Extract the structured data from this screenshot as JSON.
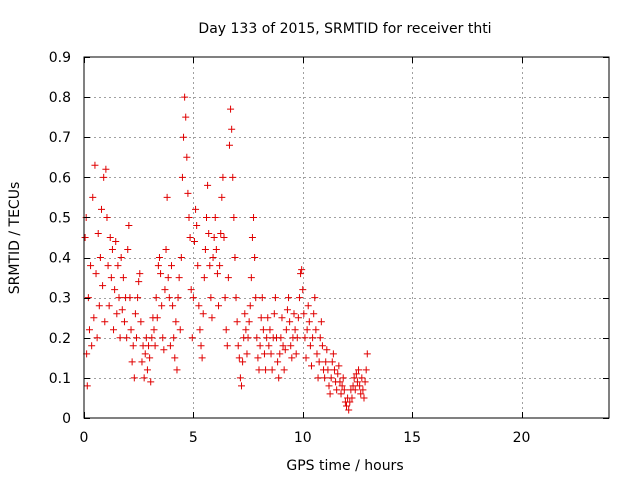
{
  "chart_data": {
    "type": "scatter",
    "title": "Day 133 of 2015, SRMTID for receiver thti",
    "xlabel": "GPS time / hours",
    "ylabel": "SRMTID / TECUs",
    "xlim": [
      0,
      24
    ],
    "ylim": [
      0,
      0.9
    ],
    "xticks": [
      0,
      5,
      10,
      15,
      20
    ],
    "xtick_labels": [
      "0",
      "5",
      "10",
      "15",
      "20"
    ],
    "yticks": [
      0,
      0.1,
      0.2,
      0.3,
      0.4,
      0.5,
      0.6,
      0.7,
      0.8,
      0.9
    ],
    "ytick_labels": [
      "0",
      "0.1",
      "0.2",
      "0.3",
      "0.4",
      "0.5",
      "0.6",
      "0.7",
      "0.8",
      "0.9"
    ],
    "grid": true,
    "marker": "plus",
    "color": "#e00000",
    "series": [
      {
        "name": "SRMTID",
        "points": [
          [
            0.05,
            0.45
          ],
          [
            0.1,
            0.5
          ],
          [
            0.12,
            0.16
          ],
          [
            0.15,
            0.08
          ],
          [
            0.2,
            0.3
          ],
          [
            0.25,
            0.22
          ],
          [
            0.3,
            0.38
          ],
          [
            0.35,
            0.18
          ],
          [
            0.4,
            0.55
          ],
          [
            0.45,
            0.25
          ],
          [
            0.5,
            0.63
          ],
          [
            0.55,
            0.36
          ],
          [
            0.6,
            0.2
          ],
          [
            0.65,
            0.46
          ],
          [
            0.7,
            0.28
          ],
          [
            0.75,
            0.4
          ],
          [
            0.8,
            0.52
          ],
          [
            0.85,
            0.33
          ],
          [
            0.9,
            0.6
          ],
          [
            0.95,
            0.24
          ],
          [
            1.0,
            0.62
          ],
          [
            1.05,
            0.5
          ],
          [
            1.1,
            0.38
          ],
          [
            1.15,
            0.28
          ],
          [
            1.2,
            0.45
          ],
          [
            1.25,
            0.35
          ],
          [
            1.3,
            0.42
          ],
          [
            1.35,
            0.22
          ],
          [
            1.4,
            0.32
          ],
          [
            1.45,
            0.44
          ],
          [
            1.5,
            0.26
          ],
          [
            1.55,
            0.38
          ],
          [
            1.6,
            0.3
          ],
          [
            1.65,
            0.2
          ],
          [
            1.7,
            0.4
          ],
          [
            1.75,
            0.27
          ],
          [
            1.8,
            0.35
          ],
          [
            1.85,
            0.24
          ],
          [
            1.9,
            0.3
          ],
          [
            1.95,
            0.2
          ],
          [
            2.0,
            0.42
          ],
          [
            2.05,
            0.48
          ],
          [
            2.1,
            0.3
          ],
          [
            2.15,
            0.22
          ],
          [
            2.2,
            0.14
          ],
          [
            2.25,
            0.18
          ],
          [
            2.3,
            0.1
          ],
          [
            2.35,
            0.26
          ],
          [
            2.4,
            0.2
          ],
          [
            2.45,
            0.3
          ],
          [
            2.5,
            0.34
          ],
          [
            2.55,
            0.36
          ],
          [
            2.6,
            0.24
          ],
          [
            2.65,
            0.14
          ],
          [
            2.7,
            0.18
          ],
          [
            2.75,
            0.1
          ],
          [
            2.8,
            0.16
          ],
          [
            2.85,
            0.2
          ],
          [
            2.9,
            0.12
          ],
          [
            2.95,
            0.18
          ],
          [
            3.0,
            0.15
          ],
          [
            3.05,
            0.09
          ],
          [
            3.1,
            0.2
          ],
          [
            3.15,
            0.25
          ],
          [
            3.2,
            0.22
          ],
          [
            3.25,
            0.18
          ],
          [
            3.3,
            0.3
          ],
          [
            3.35,
            0.25
          ],
          [
            3.4,
            0.38
          ],
          [
            3.45,
            0.4
          ],
          [
            3.5,
            0.36
          ],
          [
            3.55,
            0.28
          ],
          [
            3.6,
            0.2
          ],
          [
            3.65,
            0.17
          ],
          [
            3.7,
            0.32
          ],
          [
            3.75,
            0.42
          ],
          [
            3.8,
            0.55
          ],
          [
            3.85,
            0.35
          ],
          [
            3.9,
            0.3
          ],
          [
            3.95,
            0.18
          ],
          [
            4.0,
            0.38
          ],
          [
            4.05,
            0.28
          ],
          [
            4.1,
            0.2
          ],
          [
            4.15,
            0.15
          ],
          [
            4.2,
            0.24
          ],
          [
            4.25,
            0.12
          ],
          [
            4.3,
            0.3
          ],
          [
            4.35,
            0.35
          ],
          [
            4.4,
            0.22
          ],
          [
            4.45,
            0.4
          ],
          [
            4.5,
            0.6
          ],
          [
            4.55,
            0.7
          ],
          [
            4.6,
            0.8
          ],
          [
            4.65,
            0.75
          ],
          [
            4.7,
            0.65
          ],
          [
            4.75,
            0.56
          ],
          [
            4.8,
            0.5
          ],
          [
            4.85,
            0.45
          ],
          [
            4.9,
            0.32
          ],
          [
            4.95,
            0.2
          ],
          [
            5.0,
            0.3
          ],
          [
            5.05,
            0.44
          ],
          [
            5.1,
            0.52
          ],
          [
            5.15,
            0.48
          ],
          [
            5.2,
            0.38
          ],
          [
            5.25,
            0.28
          ],
          [
            5.3,
            0.22
          ],
          [
            5.35,
            0.18
          ],
          [
            5.4,
            0.15
          ],
          [
            5.45,
            0.26
          ],
          [
            5.5,
            0.35
          ],
          [
            5.55,
            0.42
          ],
          [
            5.6,
            0.5
          ],
          [
            5.65,
            0.58
          ],
          [
            5.7,
            0.46
          ],
          [
            5.75,
            0.38
          ],
          [
            5.8,
            0.3
          ],
          [
            5.85,
            0.25
          ],
          [
            5.9,
            0.4
          ],
          [
            5.95,
            0.45
          ],
          [
            6.0,
            0.5
          ],
          [
            6.05,
            0.42
          ],
          [
            6.1,
            0.36
          ],
          [
            6.15,
            0.28
          ],
          [
            6.2,
            0.38
          ],
          [
            6.25,
            0.46
          ],
          [
            6.3,
            0.55
          ],
          [
            6.35,
            0.6
          ],
          [
            6.4,
            0.45
          ],
          [
            6.45,
            0.3
          ],
          [
            6.5,
            0.22
          ],
          [
            6.55,
            0.18
          ],
          [
            6.6,
            0.35
          ],
          [
            6.65,
            0.68
          ],
          [
            6.7,
            0.77
          ],
          [
            6.75,
            0.72
          ],
          [
            6.8,
            0.6
          ],
          [
            6.85,
            0.5
          ],
          [
            6.9,
            0.4
          ],
          [
            6.95,
            0.3
          ],
          [
            7.0,
            0.24
          ],
          [
            7.05,
            0.18
          ],
          [
            7.1,
            0.15
          ],
          [
            7.15,
            0.1
          ],
          [
            7.2,
            0.08
          ],
          [
            7.25,
            0.14
          ],
          [
            7.3,
            0.2
          ],
          [
            7.35,
            0.26
          ],
          [
            7.4,
            0.22
          ],
          [
            7.45,
            0.16
          ],
          [
            7.5,
            0.2
          ],
          [
            7.55,
            0.24
          ],
          [
            7.6,
            0.28
          ],
          [
            7.65,
            0.35
          ],
          [
            7.7,
            0.45
          ],
          [
            7.75,
            0.5
          ],
          [
            7.8,
            0.4
          ],
          [
            7.85,
            0.3
          ],
          [
            7.9,
            0.2
          ],
          [
            7.95,
            0.15
          ],
          [
            8.0,
            0.12
          ],
          [
            8.05,
            0.18
          ],
          [
            8.1,
            0.25
          ],
          [
            8.15,
            0.3
          ],
          [
            8.2,
            0.22
          ],
          [
            8.25,
            0.16
          ],
          [
            8.3,
            0.12
          ],
          [
            8.35,
            0.2
          ],
          [
            8.4,
            0.25
          ],
          [
            8.45,
            0.18
          ],
          [
            8.5,
            0.22
          ],
          [
            8.55,
            0.16
          ],
          [
            8.6,
            0.12
          ],
          [
            8.65,
            0.2
          ],
          [
            8.7,
            0.26
          ],
          [
            8.75,
            0.3
          ],
          [
            8.8,
            0.2
          ],
          [
            8.85,
            0.14
          ],
          [
            8.9,
            0.1
          ],
          [
            8.95,
            0.16
          ],
          [
            9.0,
            0.2
          ],
          [
            9.05,
            0.25
          ],
          [
            9.1,
            0.18
          ],
          [
            9.15,
            0.12
          ],
          [
            9.2,
            0.17
          ],
          [
            9.25,
            0.22
          ],
          [
            9.3,
            0.27
          ],
          [
            9.35,
            0.3
          ],
          [
            9.4,
            0.24
          ],
          [
            9.45,
            0.18
          ],
          [
            9.5,
            0.15
          ],
          [
            9.55,
            0.2
          ],
          [
            9.6,
            0.26
          ],
          [
            9.65,
            0.22
          ],
          [
            9.7,
            0.16
          ],
          [
            9.75,
            0.2
          ],
          [
            9.8,
            0.25
          ],
          [
            9.85,
            0.3
          ],
          [
            9.9,
            0.36
          ],
          [
            9.95,
            0.37
          ],
          [
            10.0,
            0.32
          ],
          [
            10.05,
            0.26
          ],
          [
            10.1,
            0.2
          ],
          [
            10.15,
            0.15
          ],
          [
            10.2,
            0.22
          ],
          [
            10.25,
            0.28
          ],
          [
            10.3,
            0.24
          ],
          [
            10.35,
            0.18
          ],
          [
            10.4,
            0.13
          ],
          [
            10.45,
            0.2
          ],
          [
            10.5,
            0.26
          ],
          [
            10.55,
            0.3
          ],
          [
            10.6,
            0.22
          ],
          [
            10.65,
            0.16
          ],
          [
            10.7,
            0.1
          ],
          [
            10.75,
            0.14
          ],
          [
            10.8,
            0.2
          ],
          [
            10.85,
            0.24
          ],
          [
            10.9,
            0.18
          ],
          [
            10.95,
            0.12
          ],
          [
            11.0,
            0.1
          ],
          [
            11.05,
            0.14
          ],
          [
            11.1,
            0.17
          ],
          [
            11.15,
            0.12
          ],
          [
            11.2,
            0.08
          ],
          [
            11.25,
            0.06
          ],
          [
            11.3,
            0.1
          ],
          [
            11.35,
            0.14
          ],
          [
            11.4,
            0.16
          ],
          [
            11.45,
            0.12
          ],
          [
            11.5,
            0.09
          ],
          [
            11.55,
            0.07
          ],
          [
            11.6,
            0.11
          ],
          [
            11.65,
            0.13
          ],
          [
            11.7,
            0.09
          ],
          [
            11.75,
            0.06
          ],
          [
            11.8,
            0.08
          ],
          [
            11.85,
            0.1
          ],
          [
            11.9,
            0.07
          ],
          [
            11.95,
            0.04
          ],
          [
            12.0,
            0.03
          ],
          [
            12.05,
            0.05
          ],
          [
            12.1,
            0.02
          ],
          [
            12.15,
            0.04
          ],
          [
            12.2,
            0.07
          ],
          [
            12.25,
            0.05
          ],
          [
            12.3,
            0.08
          ],
          [
            12.35,
            0.1
          ],
          [
            12.4,
            0.07
          ],
          [
            12.45,
            0.11
          ],
          [
            12.5,
            0.09
          ],
          [
            12.55,
            0.12
          ],
          [
            12.6,
            0.08
          ],
          [
            12.65,
            0.06
          ],
          [
            12.7,
            0.1
          ],
          [
            12.75,
            0.07
          ],
          [
            12.8,
            0.05
          ],
          [
            12.85,
            0.09
          ],
          [
            12.9,
            0.12
          ],
          [
            12.95,
            0.16
          ]
        ]
      }
    ]
  }
}
